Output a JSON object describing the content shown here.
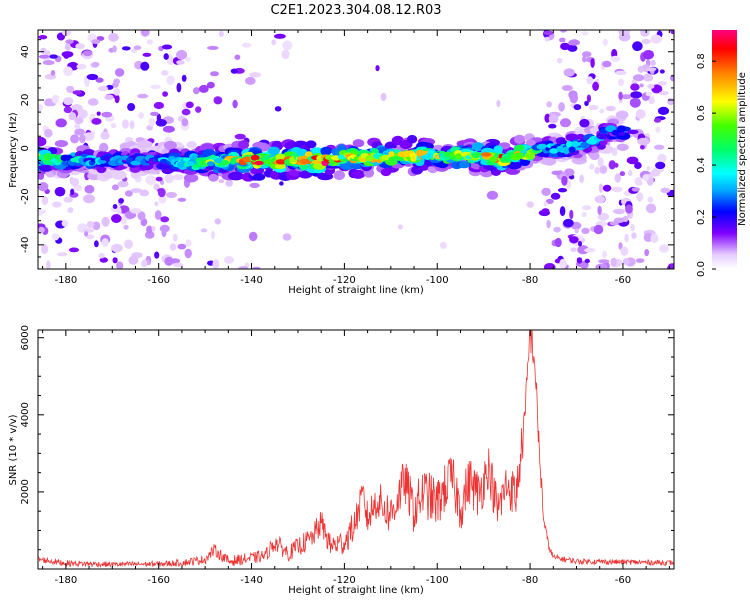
{
  "title": "C2E1.2023.304.08.12.R03",
  "chart_data": [
    {
      "type": "heatmap",
      "xlabel": "Height of straight line (km)",
      "ylabel": "Frequency (Hz)",
      "xlim": [
        -186,
        -49
      ],
      "ylim": [
        -50,
        49
      ],
      "x_ticks": [
        -180,
        -160,
        -140,
        -120,
        -100,
        -80,
        -60
      ],
      "y_ticks": [
        -40,
        -20,
        0,
        20,
        40
      ],
      "colorbar": {
        "label": "Normalized spectral amplitude",
        "range": [
          0,
          0.92
        ],
        "ticks": [
          0.0,
          0.2,
          0.4,
          0.6,
          0.8
        ],
        "colormap": [
          "#ffffff",
          "#d9b3ff",
          "#8000ff",
          "#0000ff",
          "#00ffff",
          "#00ff00",
          "#ffff00",
          "#ff8000",
          "#ff0000",
          "#ff0080"
        ]
      },
      "ridge": [
        {
          "x": -186,
          "y": -4,
          "amp": 0.5
        },
        {
          "x": -180,
          "y": -5,
          "amp": 0.35
        },
        {
          "x": -170,
          "y": -5,
          "amp": 0.25
        },
        {
          "x": -160,
          "y": -5,
          "amp": 0.25
        },
        {
          "x": -152,
          "y": -6,
          "amp": 0.45
        },
        {
          "x": -145,
          "y": -5,
          "amp": 0.55
        },
        {
          "x": -138,
          "y": -5,
          "amp": 0.7
        },
        {
          "x": -130,
          "y": -5,
          "amp": 0.65
        },
        {
          "x": -125,
          "y": -5,
          "amp": 0.75
        },
        {
          "x": -120,
          "y": -4,
          "amp": 0.6
        },
        {
          "x": -112,
          "y": -4,
          "amp": 0.6
        },
        {
          "x": -105,
          "y": -3,
          "amp": 0.6
        },
        {
          "x": -100,
          "y": -3,
          "amp": 0.55
        },
        {
          "x": -92,
          "y": -3,
          "amp": 0.5
        },
        {
          "x": -86,
          "y": -4,
          "amp": 0.7
        },
        {
          "x": -80,
          "y": -2,
          "amp": 0.5
        },
        {
          "x": -77,
          "y": 0,
          "amp": 0.35
        },
        {
          "x": -72,
          "y": 0,
          "amp": 0.3
        },
        {
          "x": -66,
          "y": 3,
          "amp": 0.3
        },
        {
          "x": -63,
          "y": 7,
          "amp": 0.25
        }
      ]
    },
    {
      "type": "line",
      "xlabel": "Height of straight line (km)",
      "ylabel": "SNR (10 * v/v)",
      "xlim": [
        -186,
        -49
      ],
      "ylim": [
        0,
        6200
      ],
      "x_ticks": [
        -180,
        -160,
        -140,
        -120,
        -100,
        -80,
        -60
      ],
      "y_ticks": [
        2000,
        4000,
        6000
      ],
      "series": [
        {
          "color": "#ee3333",
          "x": [
            -186,
            -180,
            -170,
            -160,
            -155,
            -150,
            -148,
            -145,
            -140,
            -137,
            -135,
            -132,
            -130,
            -127,
            -125,
            -123,
            -120,
            -118,
            -116,
            -115,
            -113,
            -110,
            -107,
            -105,
            -103,
            -100,
            -97,
            -95,
            -93,
            -91,
            -89,
            -87,
            -85,
            -83,
            -81,
            -80,
            -79,
            -78,
            -77,
            -76,
            -75,
            -70,
            -60,
            -49
          ],
          "y": [
            250,
            150,
            120,
            130,
            160,
            250,
            500,
            200,
            280,
            350,
            700,
            400,
            580,
            800,
            1200,
            600,
            700,
            1100,
            1900,
            1300,
            1800,
            1400,
            2300,
            1500,
            2000,
            1700,
            2400,
            1600,
            2300,
            1900,
            2700,
            1500,
            2200,
            1900,
            4000,
            6200,
            5400,
            3000,
            1200,
            600,
            300,
            200,
            180,
            160
          ],
          "noise_amplitude": [
            80,
            80,
            70,
            70,
            90,
            120,
            160,
            140,
            150,
            160,
            250,
            200,
            250,
            300,
            350,
            300,
            350,
            400,
            450,
            450,
            500,
            550,
            600,
            600,
            650,
            650,
            650,
            650,
            650,
            650,
            600,
            600,
            600,
            600,
            550,
            500,
            450,
            400,
            250,
            100,
            80,
            70,
            70,
            70
          ]
        }
      ]
    }
  ]
}
